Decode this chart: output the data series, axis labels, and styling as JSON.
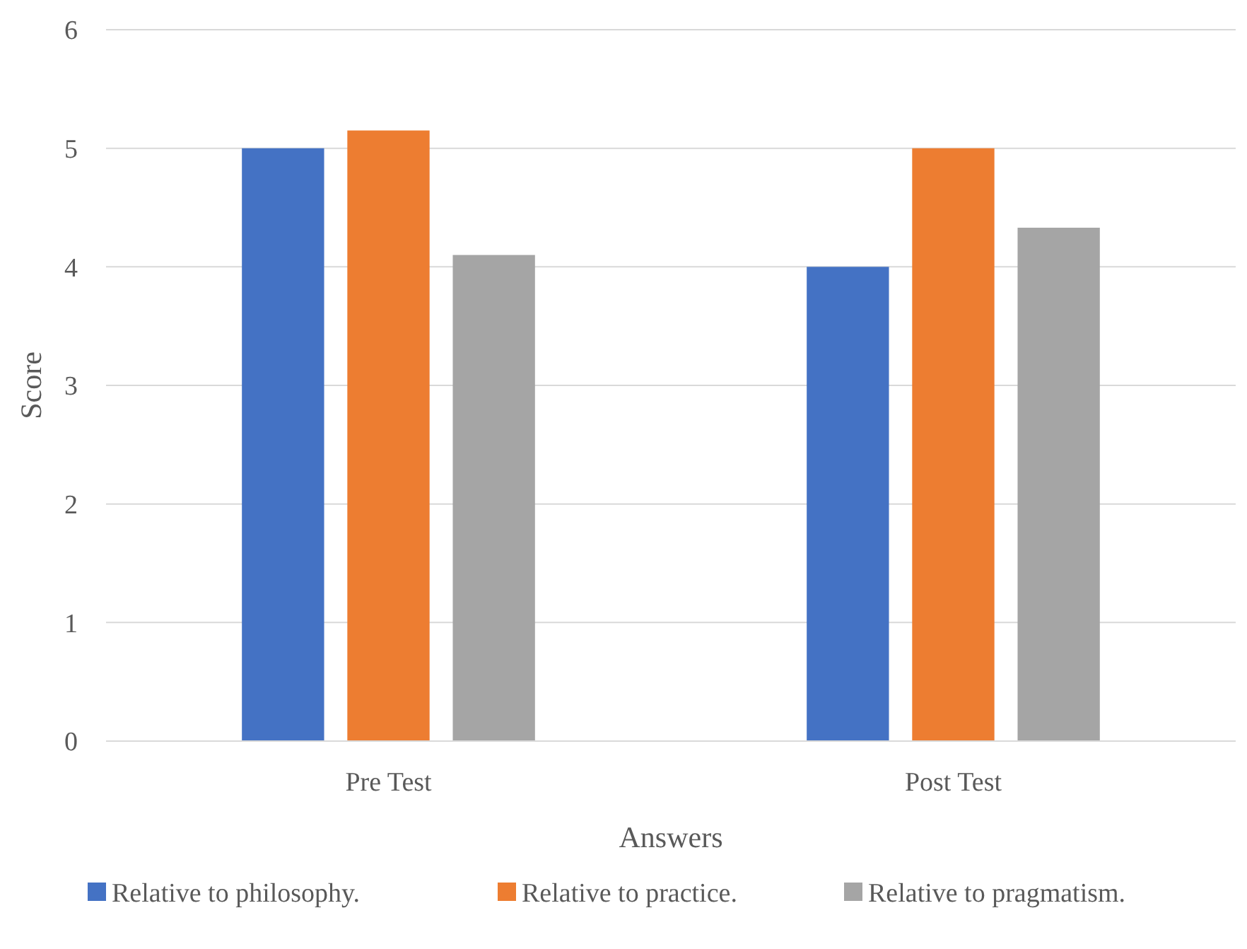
{
  "chart_data": {
    "type": "bar",
    "xlabel": "Answers",
    "ylabel": "Score",
    "categories": [
      "Pre Test",
      "Post Test"
    ],
    "series": [
      {
        "name": "Relative to philosophy.",
        "color": "#4472c4",
        "values": [
          5.0,
          4.0
        ]
      },
      {
        "name": "Relative to practice.",
        "color": "#ed7d31",
        "values": [
          5.15,
          5.0
        ]
      },
      {
        "name": "Relative to pragmatism.",
        "color": "#a5a5a5",
        "values": [
          4.1,
          4.33
        ]
      }
    ],
    "ylim": [
      0,
      6
    ],
    "yticks": [
      0,
      1,
      2,
      3,
      4,
      5,
      6
    ],
    "grid": "y",
    "legend": "bottom"
  }
}
